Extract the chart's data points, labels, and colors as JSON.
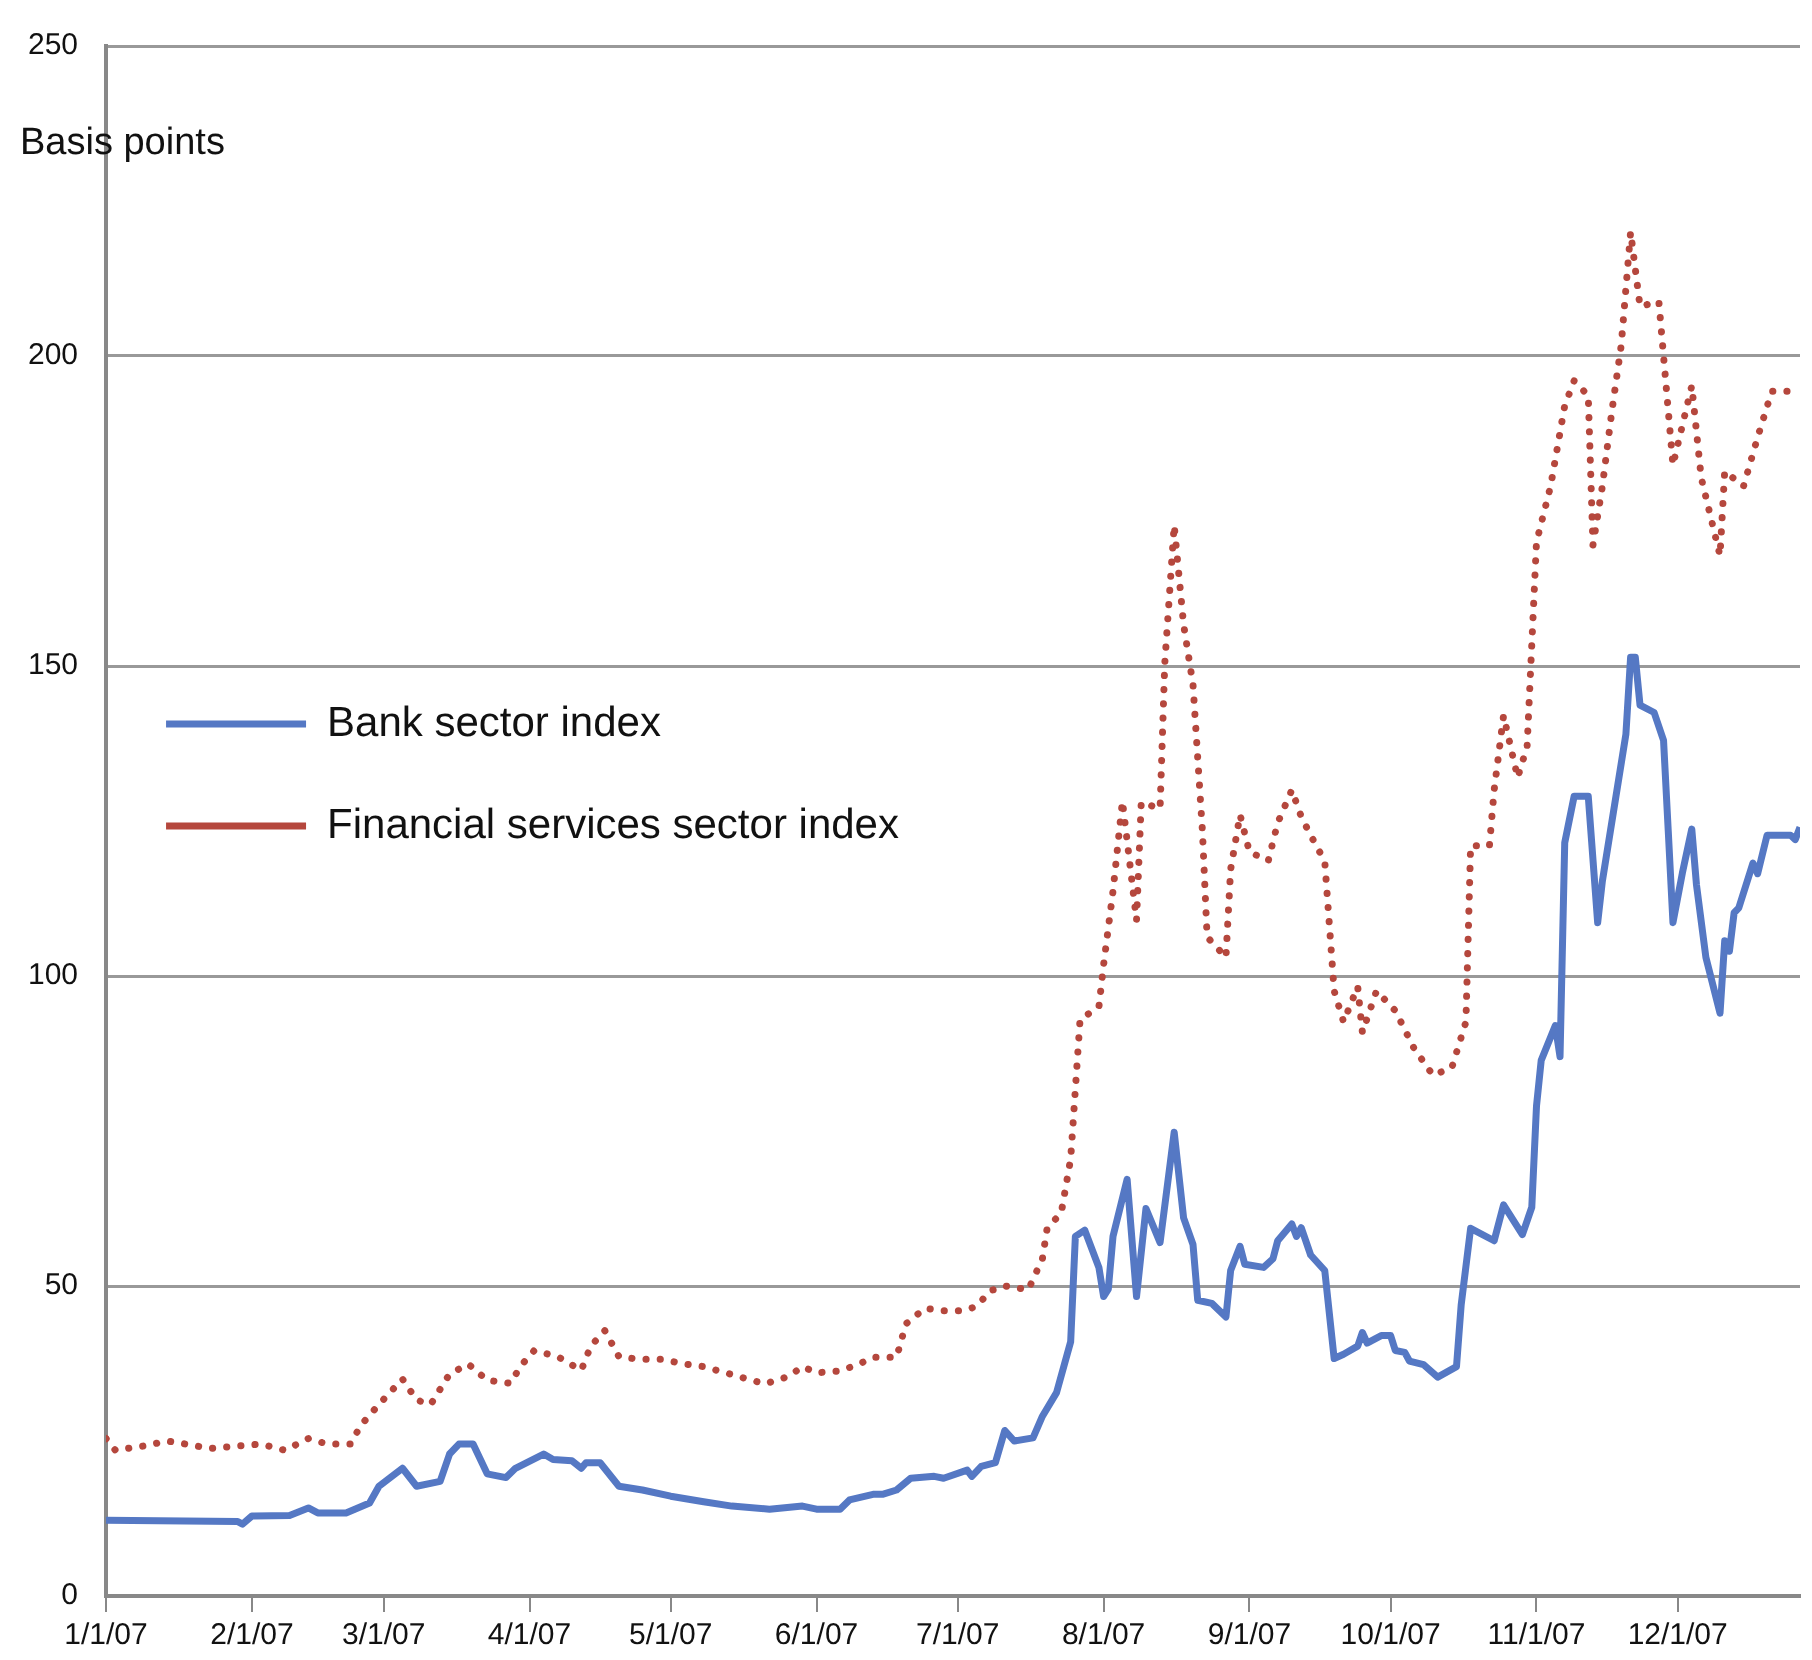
{
  "chart_data": {
    "type": "line",
    "ylabel": "Basis points",
    "legend": "top",
    "grid": "y",
    "xlim": [
      "2007-01-01",
      "2007-12-27"
    ],
    "xticks": [
      {
        "value": "2007-01-01",
        "label": "1/1/07"
      },
      {
        "value": "2007-02-01",
        "label": "2/1/07"
      },
      {
        "value": "2007-03-01",
        "label": "3/1/07"
      },
      {
        "value": "2007-04-01",
        "label": "4/1/07"
      },
      {
        "value": "2007-05-01",
        "label": "5/1/07"
      },
      {
        "value": "2007-06-01",
        "label": "6/1/07"
      },
      {
        "value": "2007-07-01",
        "label": "7/1/07"
      },
      {
        "value": "2007-08-01",
        "label": "8/1/07"
      },
      {
        "value": "2007-09-01",
        "label": "9/1/07"
      },
      {
        "value": "2007-10-01",
        "label": "10/1/07"
      },
      {
        "value": "2007-11-01",
        "label": "11/1/07"
      },
      {
        "value": "2007-12-01",
        "label": "12/1/07"
      }
    ],
    "ylim": [
      0,
      250
    ],
    "yticks": [
      0,
      50,
      100,
      150,
      200,
      250
    ],
    "series": [
      {
        "name": "Bank sector index",
        "color": "#5578c4",
        "line_style": "solid",
        "x": [
          "2007-01-01",
          "2007-01-29",
          "2007-01-30",
          "2007-02-01",
          "2007-02-09",
          "2007-02-13",
          "2007-02-15",
          "2007-02-21",
          "2007-02-26",
          "2007-02-28",
          "2007-03-05",
          "2007-03-08",
          "2007-03-13",
          "2007-03-15",
          "2007-03-17",
          "2007-03-20",
          "2007-03-23",
          "2007-03-27",
          "2007-03-29",
          "2007-04-04",
          "2007-04-06",
          "2007-04-10",
          "2007-04-12",
          "2007-04-13",
          "2007-04-16",
          "2007-04-20",
          "2007-04-25",
          "2007-05-01",
          "2007-05-08",
          "2007-05-14",
          "2007-05-22",
          "2007-05-29",
          "2007-06-01",
          "2007-06-06",
          "2007-06-08",
          "2007-06-13",
          "2007-06-15",
          "2007-06-18",
          "2007-06-21",
          "2007-06-26",
          "2007-06-28",
          "2007-07-03",
          "2007-07-04",
          "2007-07-06",
          "2007-07-09",
          "2007-07-11",
          "2007-07-13",
          "2007-07-17",
          "2007-07-19",
          "2007-07-22",
          "2007-07-25",
          "2007-07-26",
          "2007-07-28",
          "2007-07-31",
          "2007-08-01",
          "2007-08-02",
          "2007-08-03",
          "2007-08-06",
          "2007-08-08",
          "2007-08-10",
          "2007-08-13",
          "2007-08-16",
          "2007-08-18",
          "2007-08-20",
          "2007-08-21",
          "2007-08-24",
          "2007-08-27",
          "2007-08-28",
          "2007-08-30",
          "2007-08-31",
          "2007-09-04",
          "2007-09-06",
          "2007-09-07",
          "2007-09-10",
          "2007-09-11",
          "2007-09-12",
          "2007-09-14",
          "2007-09-17",
          "2007-09-19",
          "2007-09-21",
          "2007-09-24",
          "2007-09-25",
          "2007-09-26",
          "2007-09-29",
          "2007-10-01",
          "2007-10-02",
          "2007-10-04",
          "2007-10-05",
          "2007-10-08",
          "2007-10-11",
          "2007-10-15",
          "2007-10-16",
          "2007-10-18",
          "2007-10-23",
          "2007-10-25",
          "2007-10-29",
          "2007-10-31",
          "2007-11-01",
          "2007-11-02",
          "2007-11-05",
          "2007-11-06",
          "2007-11-07",
          "2007-11-09",
          "2007-11-12",
          "2007-11-14",
          "2007-11-15",
          "2007-11-20",
          "2007-11-21",
          "2007-11-22",
          "2007-11-23",
          "2007-11-26",
          "2007-11-28",
          "2007-11-29",
          "2007-11-30",
          "2007-12-02",
          "2007-12-04",
          "2007-12-05",
          "2007-12-07",
          "2007-12-10",
          "2007-12-11",
          "2007-12-12",
          "2007-12-13",
          "2007-12-14",
          "2007-12-17",
          "2007-12-18",
          "2007-12-20",
          "2007-12-25",
          "2007-12-26",
          "2007-12-27"
        ],
        "values": [
          12.2,
          12,
          11.6,
          12.9,
          13,
          14.2,
          13.4,
          13.4,
          15,
          17.7,
          20.6,
          17.7,
          18.5,
          22.9,
          24.5,
          24.5,
          19.7,
          19.1,
          20.6,
          22.9,
          22,
          21.8,
          20.6,
          21.5,
          21.5,
          17.7,
          17.1,
          16.1,
          15.2,
          14.5,
          14,
          14.5,
          14,
          14,
          15.5,
          16.4,
          16.4,
          17.1,
          19,
          19.3,
          19,
          20.3,
          19.3,
          20.9,
          21.5,
          26.7,
          25,
          25.5,
          29,
          32.8,
          41,
          58,
          59,
          53,
          48.3,
          49.5,
          58,
          67.2,
          48.3,
          62.5,
          57,
          74.8,
          61,
          56.7,
          47.7,
          47.2,
          45,
          52.5,
          56.4,
          53.5,
          53,
          54.4,
          57.3,
          60,
          58,
          59.4,
          55,
          52.5,
          38.3,
          39,
          40.3,
          42.5,
          40.8,
          42,
          42,
          39.6,
          39.3,
          37.9,
          37.3,
          35.3,
          37,
          47,
          59.3,
          57.3,
          63.1,
          58.3,
          62.7,
          79,
          86.4,
          92,
          87,
          121.5,
          129,
          129,
          108.6,
          115.3,
          139,
          151.4,
          151.4,
          143.7,
          142.5,
          138,
          123.4,
          108.6,
          116.6,
          123.7,
          114.7,
          103,
          94,
          105.7,
          104,
          110.2,
          111,
          118.2,
          116.5,
          122.7,
          122.7,
          122,
          124
        ]
      },
      {
        "name": "Financial services sector index",
        "color": "#b5473d",
        "line_style": "dotted",
        "x": [
          "2007-01-01",
          "2007-01-03",
          "2007-01-09",
          "2007-01-14",
          "2007-01-18",
          "2007-01-23",
          "2007-01-29",
          "2007-02-03",
          "2007-02-08",
          "2007-02-13",
          "2007-02-17",
          "2007-02-22",
          "2007-02-24",
          "2007-02-28",
          "2007-03-05",
          "2007-03-08",
          "2007-03-11",
          "2007-03-15",
          "2007-03-19",
          "2007-03-23",
          "2007-03-28",
          "2007-03-30",
          "2007-04-02",
          "2007-04-07",
          "2007-04-12",
          "2007-04-14",
          "2007-04-17",
          "2007-04-20",
          "2007-04-24",
          "2007-04-29",
          "2007-05-04",
          "2007-05-08",
          "2007-05-15",
          "2007-05-21",
          "2007-05-26",
          "2007-05-29",
          "2007-06-01",
          "2007-06-06",
          "2007-06-10",
          "2007-06-13",
          "2007-06-18",
          "2007-06-20",
          "2007-06-24",
          "2007-06-28",
          "2007-07-02",
          "2007-07-05",
          "2007-07-08",
          "2007-07-10",
          "2007-07-11",
          "2007-07-16",
          "2007-07-19",
          "2007-07-20",
          "2007-07-23",
          "2007-07-25",
          "2007-07-27",
          "2007-07-31",
          "2007-08-01",
          "2007-08-03",
          "2007-08-05",
          "2007-08-08",
          "2007-08-09",
          "2007-08-13",
          "2007-08-14",
          "2007-08-16",
          "2007-08-18",
          "2007-08-20",
          "2007-08-22",
          "2007-08-23",
          "2007-08-27",
          "2007-08-28",
          "2007-08-30",
          "2007-09-01",
          "2007-09-05",
          "2007-09-07",
          "2007-09-10",
          "2007-09-12",
          "2007-09-14",
          "2007-09-17",
          "2007-09-19",
          "2007-09-21",
          "2007-09-24",
          "2007-09-25",
          "2007-09-28",
          "2007-10-02",
          "2007-10-06",
          "2007-10-10",
          "2007-10-14",
          "2007-10-17",
          "2007-10-18",
          "2007-10-22",
          "2007-10-23",
          "2007-10-25",
          "2007-10-28",
          "2007-10-30",
          "2007-11-01",
          "2007-11-04",
          "2007-11-07",
          "2007-11-09",
          "2007-11-12",
          "2007-11-13",
          "2007-11-15",
          "2007-11-17",
          "2007-11-19",
          "2007-11-21",
          "2007-11-23",
          "2007-11-27",
          "2007-11-30",
          "2007-12-04",
          "2007-12-06",
          "2007-12-10",
          "2007-12-11",
          "2007-12-15",
          "2007-12-18",
          "2007-12-21",
          "2007-12-27"
        ],
        "values": [
          25.4,
          23.5,
          24.2,
          25,
          24.5,
          23.8,
          24.2,
          24.5,
          23.5,
          25.4,
          24.5,
          24.5,
          27.4,
          30.9,
          35,
          31.6,
          30.9,
          35.8,
          37.4,
          34.8,
          34.3,
          37,
          39.6,
          38.6,
          36.4,
          40.3,
          42.8,
          38.6,
          38.2,
          38.2,
          37.4,
          37,
          35.5,
          34.2,
          35.4,
          37,
          36,
          36.3,
          37.4,
          38.5,
          38.5,
          43.9,
          46.4,
          46,
          46,
          46.7,
          49.3,
          49.6,
          50,
          49.4,
          54.4,
          59.3,
          61.8,
          70.5,
          93,
          95,
          101.8,
          113.7,
          128.2,
          109,
          128,
          127,
          150.4,
          172.7,
          156.7,
          147,
          123.4,
          106.3,
          103,
          117.2,
          126,
          120,
          118.6,
          124.7,
          130,
          125.7,
          122.7,
          118.5,
          97.6,
          92.6,
          98.3,
          90.9,
          97.6,
          94.4,
          88.3,
          84,
          85.2,
          92.6,
          121,
          121,
          130,
          142,
          132,
          137,
          170,
          179,
          192,
          196,
          193.6,
          169.5,
          179,
          191,
          201.7,
          220,
          208,
          208.8,
          182.4,
          195.2,
          180.4,
          167.8,
          181.4,
          179,
          186.9,
          194.3,
          194.3
        ]
      }
    ]
  }
}
